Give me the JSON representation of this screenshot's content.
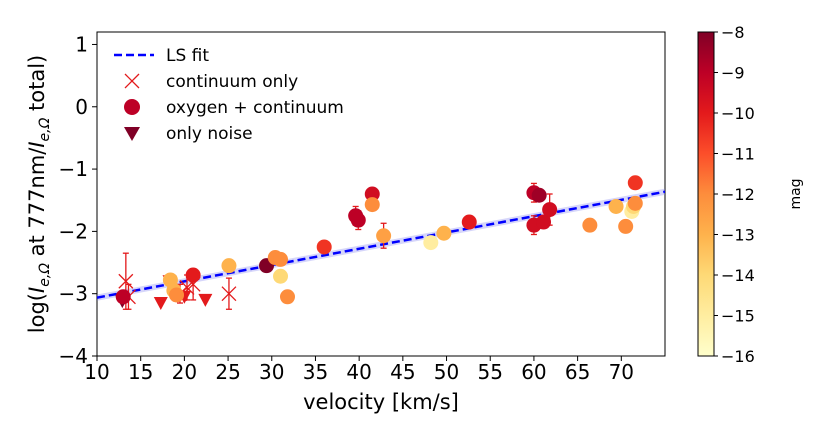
{
  "chart_data": {
    "type": "scatter",
    "xlabel": "velocity [km/s]",
    "ylabel_parts": [
      "log(",
      "I",
      "e,Ω",
      " at 777nm/",
      "I",
      "e,Ω",
      " total)"
    ],
    "xlim": [
      10,
      75
    ],
    "ylim": [
      -4,
      1.2
    ],
    "xticks": [
      "10",
      "15",
      "20",
      "25",
      "30",
      "35",
      "40",
      "45",
      "50",
      "55",
      "60",
      "65",
      "70"
    ],
    "yticks": [
      "1",
      "0",
      "−1",
      "−2",
      "−3",
      "−4"
    ],
    "colorbar": {
      "label": "mag",
      "range": [
        -16,
        -8
      ],
      "ticks": [
        "−8",
        "−9",
        "−10",
        "−11",
        "−12",
        "−13",
        "−14",
        "−15",
        "−16"
      ],
      "colormap": "YlOrRd"
    },
    "legend": {
      "location": "upper-left",
      "entries": [
        "LS fit",
        "continuum only",
        "oxygen + continuum",
        "only noise"
      ]
    },
    "fit": {
      "slope": 0.02615,
      "intercept": -3.325,
      "band_halfwidth": 0.05
    },
    "series": [
      {
        "name": "continuum only",
        "marker": "x",
        "points": [
          {
            "x": 13.3,
            "y": -2.8,
            "mag": -10,
            "yerr": 0.45
          },
          {
            "x": 13.6,
            "y": -3.05,
            "mag": -10,
            "yerr": 0.2
          },
          {
            "x": 19.5,
            "y": -3.0,
            "mag": -10,
            "yerr": 0.15
          },
          {
            "x": 20.3,
            "y": -2.9,
            "mag": -10,
            "yerr": 0.2
          },
          {
            "x": 21.0,
            "y": -2.85,
            "mag": -10,
            "yerr": 0.25
          },
          {
            "x": 25.1,
            "y": -3.0,
            "mag": -10,
            "yerr": 0.25
          }
        ]
      },
      {
        "name": "oxygen + continuum",
        "marker": "o",
        "points": [
          {
            "x": 13.0,
            "y": -3.05,
            "mag": -9
          },
          {
            "x": 18.4,
            "y": -2.78,
            "mag": -13,
            "yerr": 0.1
          },
          {
            "x": 18.8,
            "y": -2.95,
            "mag": -13
          },
          {
            "x": 19.1,
            "y": -3.02,
            "mag": -12,
            "yerr": 0.1
          },
          {
            "x": 21.0,
            "y": -2.7,
            "mag": -10
          },
          {
            "x": 25.1,
            "y": -2.55,
            "mag": -13
          },
          {
            "x": 29.4,
            "y": -2.55,
            "mag": -8
          },
          {
            "x": 30.4,
            "y": -2.42,
            "mag": -12
          },
          {
            "x": 31.0,
            "y": -2.45,
            "mag": -12
          },
          {
            "x": 31.0,
            "y": -2.72,
            "mag": -14
          },
          {
            "x": 31.8,
            "y": -3.05,
            "mag": -12
          },
          {
            "x": 36.0,
            "y": -2.25,
            "mag": -10.5
          },
          {
            "x": 39.6,
            "y": -1.75,
            "mag": -9,
            "yerr": 0.15
          },
          {
            "x": 39.9,
            "y": -1.82,
            "mag": -9,
            "yerr": 0.15
          },
          {
            "x": 41.5,
            "y": -1.4,
            "mag": -9.5
          },
          {
            "x": 41.5,
            "y": -1.57,
            "mag": -12
          },
          {
            "x": 42.8,
            "y": -2.07,
            "mag": -12.5,
            "yerr": 0.2
          },
          {
            "x": 48.2,
            "y": -2.18,
            "mag": -15
          },
          {
            "x": 49.7,
            "y": -2.03,
            "mag": -13
          },
          {
            "x": 52.6,
            "y": -1.85,
            "mag": -10
          },
          {
            "x": 60.0,
            "y": -1.38,
            "mag": -9,
            "yerr": 0.15
          },
          {
            "x": 60.0,
            "y": -1.9,
            "mag": -9.5,
            "yerr": 0.15
          },
          {
            "x": 60.6,
            "y": -1.42,
            "mag": -8.5
          },
          {
            "x": 61.1,
            "y": -1.85,
            "mag": -9.5
          },
          {
            "x": 61.8,
            "y": -1.65,
            "mag": -9.5,
            "yerr": 0.25
          },
          {
            "x": 66.4,
            "y": -1.9,
            "mag": -12
          },
          {
            "x": 69.4,
            "y": -1.6,
            "mag": -13
          },
          {
            "x": 70.5,
            "y": -1.92,
            "mag": -12
          },
          {
            "x": 71.2,
            "y": -1.68,
            "mag": -15
          },
          {
            "x": 71.4,
            "y": -1.6,
            "mag": -14
          },
          {
            "x": 71.6,
            "y": -1.55,
            "mag": -12
          },
          {
            "x": 71.6,
            "y": -1.22,
            "mag": -10.5
          }
        ]
      },
      {
        "name": "only noise",
        "marker": "v",
        "points": [
          {
            "x": 12.9,
            "y": -3.12,
            "mag": -8
          },
          {
            "x": 17.3,
            "y": -3.15,
            "mag": -10
          },
          {
            "x": 18.3,
            "y": -2.8,
            "mag": -10
          },
          {
            "x": 20.0,
            "y": -3.05,
            "mag": -10
          },
          {
            "x": 22.4,
            "y": -3.1,
            "mag": -10
          }
        ]
      }
    ]
  }
}
